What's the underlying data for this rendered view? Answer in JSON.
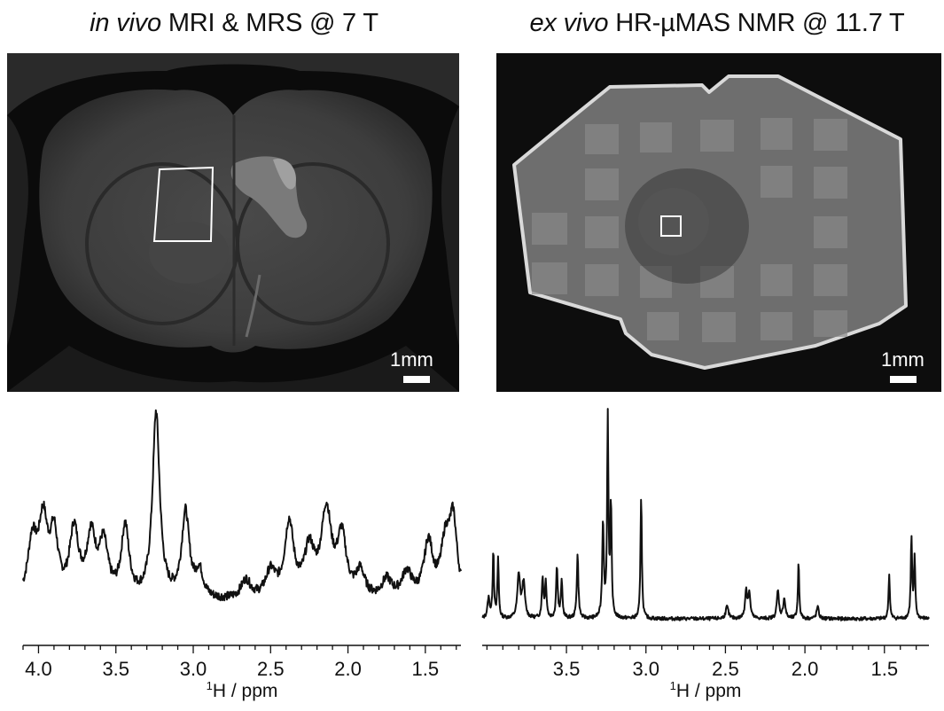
{
  "panels": {
    "left_title_italic": "in vivo",
    "left_title_rest": " MRI & MRS @ 7 T",
    "right_title_italic": "ex vivo",
    "right_title_rest": " HR-µMAS NMR @ 11.7 T",
    "left_scale": "1mm",
    "right_scale": "1mm"
  },
  "chart_data": [
    {
      "type": "line",
      "title": "",
      "xlabel_sup": "1",
      "xlabel": "H / ppm",
      "xlim": [
        4.1,
        1.27
      ],
      "tick_labels": [
        "4.0",
        "3.5",
        "3.0",
        "2.5",
        "2.0",
        "1.5"
      ],
      "tick_values": [
        4.0,
        3.5,
        3.0,
        2.5,
        2.0,
        1.5
      ],
      "minor_tick_step": 0.1,
      "grid": false,
      "peaks": [
        {
          "ppm": 4.04,
          "height": 0.3,
          "width": 0.035
        },
        {
          "ppm": 3.97,
          "height": 0.4,
          "width": 0.035
        },
        {
          "ppm": 3.9,
          "height": 0.32,
          "width": 0.03
        },
        {
          "ppm": 3.77,
          "height": 0.36,
          "width": 0.035
        },
        {
          "ppm": 3.66,
          "height": 0.32,
          "width": 0.035
        },
        {
          "ppm": 3.58,
          "height": 0.28,
          "width": 0.035
        },
        {
          "ppm": 3.44,
          "height": 0.38,
          "width": 0.03
        },
        {
          "ppm": 3.24,
          "height": 1.0,
          "width": 0.028
        },
        {
          "ppm": 3.05,
          "height": 0.46,
          "width": 0.03
        },
        {
          "ppm": 2.96,
          "height": 0.14,
          "width": 0.03
        },
        {
          "ppm": 2.66,
          "height": 0.1,
          "width": 0.04
        },
        {
          "ppm": 2.5,
          "height": 0.14,
          "width": 0.04
        },
        {
          "ppm": 2.38,
          "height": 0.4,
          "width": 0.035
        },
        {
          "ppm": 2.25,
          "height": 0.25,
          "width": 0.04
        },
        {
          "ppm": 2.14,
          "height": 0.46,
          "width": 0.04
        },
        {
          "ppm": 2.04,
          "height": 0.32,
          "width": 0.035
        },
        {
          "ppm": 1.92,
          "height": 0.14,
          "width": 0.035
        },
        {
          "ppm": 1.75,
          "height": 0.1,
          "width": 0.04
        },
        {
          "ppm": 1.62,
          "height": 0.14,
          "width": 0.04
        },
        {
          "ppm": 1.48,
          "height": 0.3,
          "width": 0.035
        },
        {
          "ppm": 1.37,
          "height": 0.28,
          "width": 0.035
        },
        {
          "ppm": 1.32,
          "height": 0.4,
          "width": 0.03
        }
      ]
    },
    {
      "type": "line",
      "title": "",
      "xlabel_sup": "1",
      "xlabel": "H / ppm",
      "xlim": [
        4.03,
        1.22
      ],
      "tick_labels": [
        "3.5",
        "3.0",
        "2.5",
        "2.0",
        "1.5"
      ],
      "tick_values": [
        3.5,
        3.0,
        2.5,
        2.0,
        1.5
      ],
      "minor_tick_step": 0.1,
      "grid": false,
      "peaks": [
        {
          "ppm": 3.99,
          "height": 0.1,
          "width": 0.008
        },
        {
          "ppm": 3.96,
          "height": 0.34,
          "width": 0.005
        },
        {
          "ppm": 3.93,
          "height": 0.3,
          "width": 0.005
        },
        {
          "ppm": 3.8,
          "height": 0.22,
          "width": 0.01
        },
        {
          "ppm": 3.77,
          "height": 0.18,
          "width": 0.01
        },
        {
          "ppm": 3.65,
          "height": 0.2,
          "width": 0.006
        },
        {
          "ppm": 3.63,
          "height": 0.18,
          "width": 0.006
        },
        {
          "ppm": 3.56,
          "height": 0.26,
          "width": 0.006
        },
        {
          "ppm": 3.53,
          "height": 0.18,
          "width": 0.006
        },
        {
          "ppm": 3.43,
          "height": 0.32,
          "width": 0.006
        },
        {
          "ppm": 3.27,
          "height": 0.48,
          "width": 0.006
        },
        {
          "ppm": 3.24,
          "height": 1.0,
          "width": 0.005
        },
        {
          "ppm": 3.22,
          "height": 0.55,
          "width": 0.005
        },
        {
          "ppm": 3.03,
          "height": 0.62,
          "width": 0.005
        },
        {
          "ppm": 2.49,
          "height": 0.06,
          "width": 0.01
        },
        {
          "ppm": 2.37,
          "height": 0.14,
          "width": 0.008
        },
        {
          "ppm": 2.35,
          "height": 0.12,
          "width": 0.008
        },
        {
          "ppm": 2.17,
          "height": 0.14,
          "width": 0.008
        },
        {
          "ppm": 2.13,
          "height": 0.1,
          "width": 0.008
        },
        {
          "ppm": 2.04,
          "height": 0.28,
          "width": 0.005
        },
        {
          "ppm": 1.92,
          "height": 0.06,
          "width": 0.008
        },
        {
          "ppm": 1.47,
          "height": 0.22,
          "width": 0.005
        },
        {
          "ppm": 1.33,
          "height": 0.4,
          "width": 0.005
        },
        {
          "ppm": 1.31,
          "height": 0.3,
          "width": 0.005
        }
      ]
    }
  ]
}
